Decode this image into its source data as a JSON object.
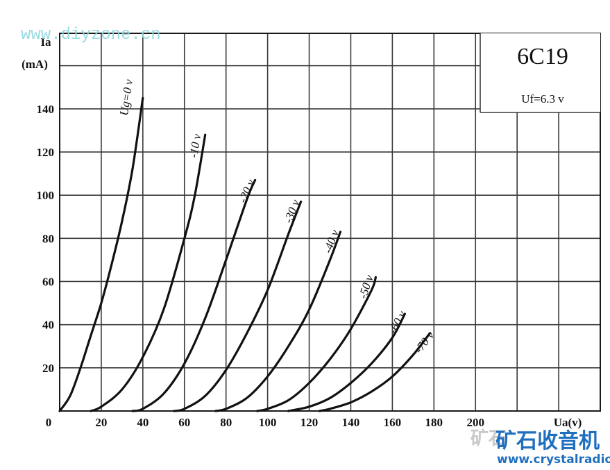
{
  "chart_data": {
    "type": "line",
    "title": "6C19",
    "annotation": "Uf=6.3 v",
    "ylabel_line1": "Ia",
    "ylabel_line2": "(mA)",
    "xlabel": "Ua(v)",
    "xlim": [
      0,
      260
    ],
    "ylim": [
      0,
      175
    ],
    "grid": true,
    "x_ticks": [
      "0",
      "20",
      "40",
      "60",
      "80",
      "100",
      "120",
      "140",
      "160",
      "180",
      "200"
    ],
    "y_ticks": [
      "20",
      "40",
      "60",
      "80",
      "100",
      "120",
      "140"
    ],
    "series": [
      {
        "name": "Ug=0 v",
        "x": [
          0,
          5,
          10,
          15,
          20,
          25,
          30,
          35,
          40
        ],
        "y": [
          0,
          7,
          20,
          35,
          50,
          68,
          88,
          112,
          145
        ]
      },
      {
        "name": "-10 v",
        "x": [
          15,
          20,
          30,
          40,
          50,
          60,
          65,
          70
        ],
        "y": [
          0,
          2,
          10,
          25,
          47,
          80,
          100,
          128
        ]
      },
      {
        "name": "-20 v",
        "x": [
          35,
          40,
          50,
          60,
          70,
          80,
          90,
          94
        ],
        "y": [
          0,
          1,
          8,
          22,
          43,
          70,
          98,
          107
        ]
      },
      {
        "name": "-30 v",
        "x": [
          55,
          60,
          70,
          80,
          90,
          100,
          110,
          116
        ],
        "y": [
          0,
          1,
          7,
          19,
          36,
          56,
          82,
          97
        ]
      },
      {
        "name": "-40 v",
        "x": [
          75,
          80,
          90,
          100,
          110,
          120,
          130,
          135
        ],
        "y": [
          0,
          1,
          6,
          16,
          30,
          47,
          70,
          83
        ]
      },
      {
        "name": "-50 v",
        "x": [
          95,
          100,
          110,
          120,
          130,
          140,
          150,
          152
        ],
        "y": [
          0,
          1,
          5,
          13,
          24,
          38,
          56,
          62
        ]
      },
      {
        "name": "-60 v",
        "x": [
          110,
          120,
          130,
          140,
          150,
          160,
          166
        ],
        "y": [
          0,
          2,
          6,
          13,
          22,
          34,
          45
        ]
      },
      {
        "name": "-70 v",
        "x": [
          125,
          130,
          140,
          150,
          160,
          170,
          178
        ],
        "y": [
          0,
          1,
          4,
          9,
          16,
          26,
          36
        ]
      }
    ],
    "series_label_text": [
      "Ug=0 v",
      "-10 v",
      "-20 v",
      "-30 v",
      "-40 v",
      "-50 v",
      "-60 v",
      "-70 v"
    ]
  },
  "watermarks": {
    "top": "www.diyzone.cn",
    "cn": "矿石收音机",
    "url": "www.crystalradio.cn",
    "faint": "矿石"
  },
  "colors": {
    "line": "#111111",
    "grid": "#3a3a3a",
    "watermark_top": "#8fd6df",
    "watermark_cn": "#1f6fbf"
  }
}
